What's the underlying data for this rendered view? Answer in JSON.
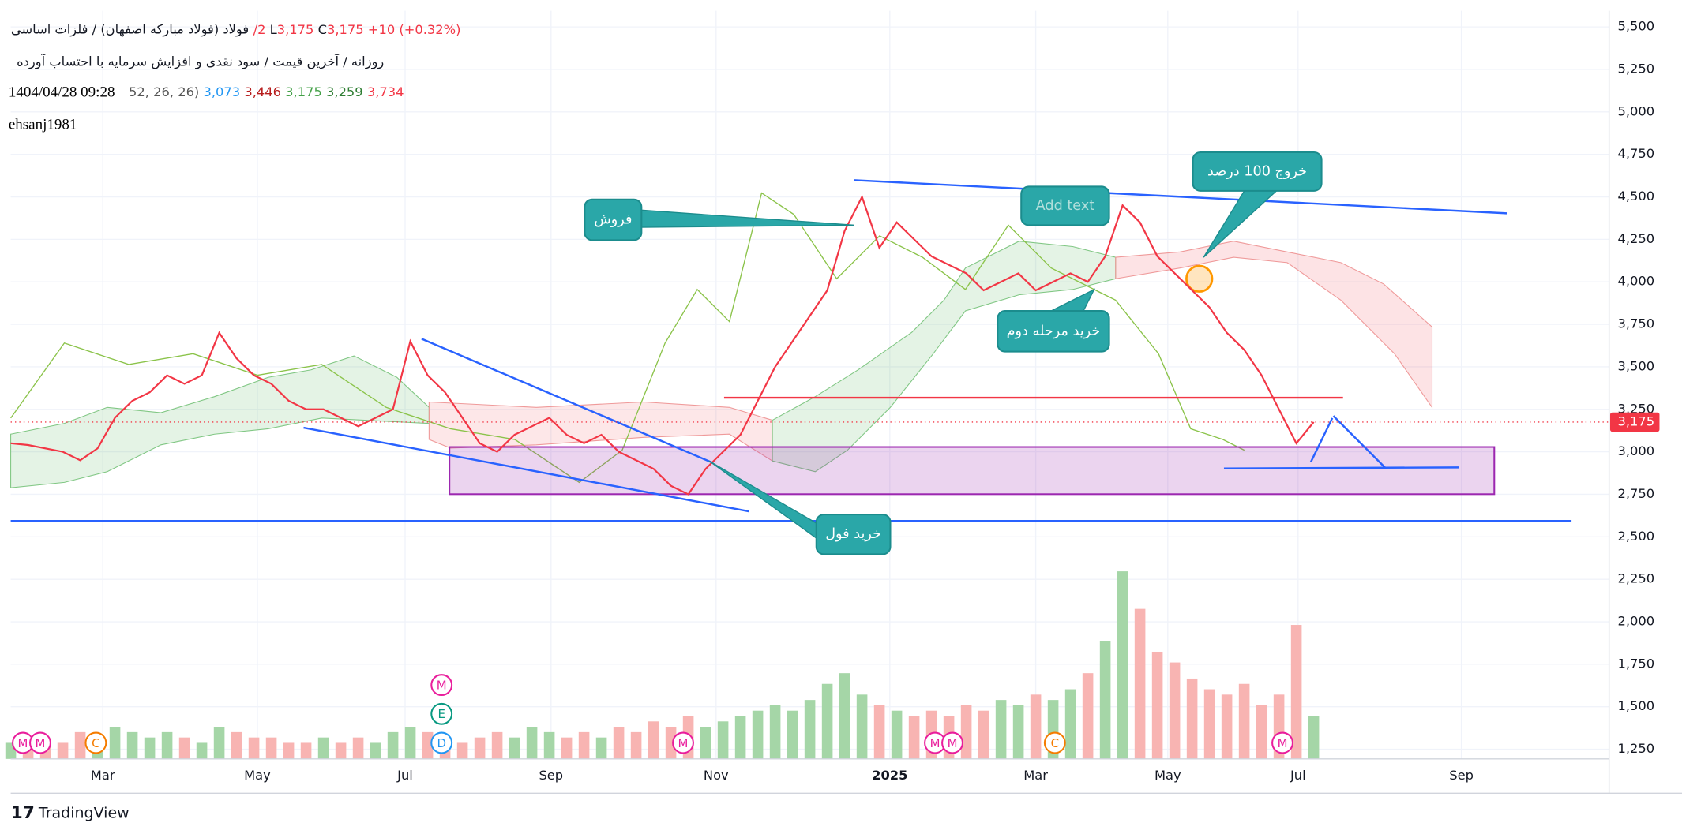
{
  "header": {
    "title": "فولاد (فولاد مبارکه اصفهان) / فلزات اساسی",
    "ohlc": [
      "/2",
      "L",
      "3,175",
      "C",
      "3,175",
      "+10 (+0.32%)"
    ],
    "subtitle": "روزانه / آخرین قیمت / سود نقدی و افزایش سرمایه با احتساب آورده",
    "timestamp": "1404/04/28 09:28",
    "indicator_params": "52, 26, 26)",
    "indicator_values": [
      "3,073",
      "3,446",
      "3,175",
      "3,259",
      "3,734"
    ],
    "author": "ehsanj1981"
  },
  "chart_data": {
    "type": "line",
    "x": [
      0,
      1,
      2,
      3,
      4,
      5,
      6,
      7,
      8,
      9,
      10,
      11,
      12,
      13,
      14,
      15,
      16,
      17,
      18,
      19,
      20,
      21,
      22,
      23,
      24,
      25,
      26,
      27,
      28,
      29,
      30,
      31,
      32,
      33,
      34,
      35,
      36,
      37,
      38,
      39,
      40,
      41,
      42,
      43,
      44,
      45,
      46,
      47,
      48,
      49,
      50,
      51,
      52,
      53,
      54,
      55,
      56,
      57,
      58,
      59,
      60,
      61,
      62,
      63,
      64,
      65,
      66,
      67,
      68,
      69,
      70,
      71,
      72,
      73,
      74,
      75
    ],
    "series": [
      {
        "color": "#f23645",
        "values": [
          3050,
          3040,
          3020,
          3000,
          2950,
          3020,
          3200,
          3300,
          3350,
          3450,
          3400,
          3450,
          3700,
          3550,
          3450,
          3400,
          3300,
          3250,
          3250,
          3200,
          3150,
          3200,
          3250,
          3650,
          3450,
          3350,
          3200,
          3050,
          3000,
          3100,
          3150,
          3200,
          3100,
          3050,
          3100,
          3000,
          2950,
          2900,
          2800,
          2750,
          2900,
          3000,
          3100,
          3300,
          3500,
          3650,
          3800,
          3950,
          4300,
          4500,
          4200,
          4350,
          4250,
          4150,
          4100,
          4050,
          3950,
          4000,
          4050,
          3950,
          4000,
          4050,
          4000,
          4150,
          4450,
          4350,
          4150,
          4050,
          3950,
          3850,
          3700,
          3600,
          3450,
          3250,
          3050,
          3175
        ]
      },
      {
        "axis": "y2",
        "up_color": "#a5d6a7",
        "down_color": "#f8b4b2",
        "values": [
          3,
          4,
          3,
          3,
          5,
          4,
          6,
          5,
          4,
          5,
          4,
          3,
          6,
          5,
          4,
          4,
          3,
          3,
          4,
          3,
          4,
          3,
          5,
          6,
          5,
          4,
          3,
          4,
          5,
          4,
          6,
          5,
          4,
          5,
          4,
          6,
          5,
          7,
          6,
          8,
          6,
          7,
          8,
          9,
          10,
          9,
          11,
          14,
          16,
          12,
          10,
          9,
          8,
          9,
          8,
          10,
          9,
          11,
          10,
          12,
          11,
          13,
          16,
          22,
          35,
          28,
          20,
          18,
          15,
          13,
          12,
          14,
          10,
          12,
          25,
          8
        ]
      }
    ],
    "xlim": [
      0,
      92
    ],
    "xticks": [
      {
        "value": 5.3,
        "label": "Mar"
      },
      {
        "value": 14.2,
        "label": "May"
      },
      {
        "value": 22.7,
        "label": "Jul"
      },
      {
        "value": 31.1,
        "label": "Sep"
      },
      {
        "value": 40.6,
        "label": "Nov"
      },
      {
        "value": 50.6,
        "label": "2025"
      },
      {
        "value": 59,
        "label": "Mar"
      },
      {
        "value": 66.6,
        "label": "May"
      },
      {
        "value": 74.1,
        "label": "Jul"
      },
      {
        "value": 83.5,
        "label": "Sep"
      }
    ],
    "ylim": [
      1193,
      5595
    ],
    "yticks": [
      {
        "value": 1250,
        "label": "1,250"
      },
      {
        "value": 1500,
        "label": "1,500"
      },
      {
        "value": 1750,
        "label": "1,750"
      },
      {
        "value": 2000,
        "label": "2,000"
      },
      {
        "value": 2250,
        "label": "2,250"
      },
      {
        "value": 2500,
        "label": "2,500"
      },
      {
        "value": 2750,
        "label": "2,750"
      },
      {
        "value": 3000,
        "label": "3,000"
      },
      {
        "value": 3250,
        "label": "3,250"
      },
      {
        "value": 3500,
        "label": "3,500"
      },
      {
        "value": 3750,
        "label": "3,750"
      },
      {
        "value": 4000,
        "label": "4,000"
      },
      {
        "value": 4250,
        "label": "4,250"
      },
      {
        "value": 4500,
        "label": "4,500"
      },
      {
        "value": 4750,
        "label": "4,750"
      },
      {
        "value": 5000,
        "label": "5,000"
      },
      {
        "value": 5250,
        "label": "5,250"
      },
      {
        "value": 5500,
        "label": "5,500"
      }
    ],
    "y2lim": [
      0,
      40
    ],
    "grid": true,
    "last_price": {
      "value": 3175,
      "label": "3,175"
    },
    "events": [
      {
        "x": 0.7,
        "label": "M",
        "color": "#e91e9c"
      },
      {
        "x": 1.7,
        "label": "M",
        "color": "#e91e9c"
      },
      {
        "x": 4.9,
        "label": "C",
        "color": "#f57c00"
      },
      {
        "x": 24.8,
        "label": "D",
        "color": "#2196f3"
      },
      {
        "x": 24.8,
        "label": "E",
        "color": "#089981"
      },
      {
        "x": 24.8,
        "label": "M",
        "color": "#e91e9c"
      },
      {
        "x": 38.7,
        "label": "M",
        "color": "#e91e9c"
      },
      {
        "x": 53.2,
        "label": "M",
        "color": "#e91e9c"
      },
      {
        "x": 54.2,
        "label": "M",
        "color": "#e91e9c"
      },
      {
        "x": 60.1,
        "label": "C",
        "color": "#f57c00"
      },
      {
        "x": 73.2,
        "label": "M",
        "color": "#e91e9c"
      }
    ]
  },
  "annotations": [
    "فروش",
    "Add text",
    "خروج 100 درصد",
    "خرید مرحله دوم",
    "خرید فول"
  ],
  "footer": {
    "brand": "TradingView"
  }
}
